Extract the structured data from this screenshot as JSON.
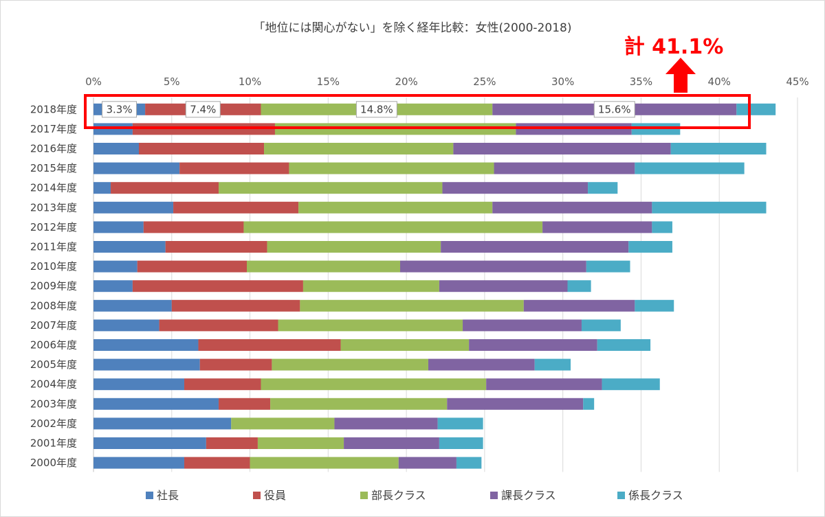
{
  "chart_data": {
    "type": "bar",
    "orientation": "horizontal",
    "stacked": true,
    "title": "「地位には関心がない」を除く経年比較：女性(2000-2018)",
    "xlabel": "",
    "ylabel": "",
    "xlim": [
      0,
      45
    ],
    "xticks": [
      "0%",
      "5%",
      "10%",
      "15%",
      "20%",
      "25%",
      "30%",
      "35%",
      "40%",
      "45%"
    ],
    "grid": true,
    "legend_position": "bottom",
    "categories": [
      "2018年度",
      "2017年度",
      "2016年度",
      "2015年度",
      "2014年度",
      "2013年度",
      "2012年度",
      "2011年度",
      "2010年度",
      "2009年度",
      "2008年度",
      "2007年度",
      "2006年度",
      "2005年度",
      "2004年度",
      "2003年度",
      "2002年度",
      "2001年度",
      "2000年度"
    ],
    "series": [
      {
        "name": "社長",
        "color": "#4f81bd",
        "values": [
          3.3,
          2.5,
          2.9,
          5.5,
          1.1,
          5.1,
          3.2,
          4.6,
          2.8,
          2.5,
          5.0,
          4.2,
          6.7,
          6.8,
          5.8,
          8.0,
          8.8,
          7.2,
          5.8
        ]
      },
      {
        "name": "役員",
        "color": "#c0504d",
        "values": [
          7.4,
          9.1,
          8.0,
          7.0,
          6.9,
          8.0,
          6.4,
          6.5,
          7.0,
          10.9,
          8.2,
          7.6,
          9.1,
          4.6,
          4.9,
          3.3,
          0.0,
          3.3,
          4.2
        ]
      },
      {
        "name": "部長クラス",
        "color": "#9bbb59",
        "values": [
          14.8,
          15.4,
          12.1,
          13.1,
          14.3,
          12.4,
          19.1,
          11.1,
          9.8,
          8.7,
          14.3,
          11.8,
          8.2,
          10.0,
          14.4,
          11.3,
          6.6,
          5.5,
          9.5
        ]
      },
      {
        "name": "課長クラス",
        "color": "#8064a2",
        "values": [
          15.6,
          7.4,
          13.9,
          9.0,
          9.3,
          10.2,
          7.0,
          12.0,
          11.9,
          8.2,
          7.1,
          7.6,
          8.2,
          6.8,
          7.4,
          8.7,
          6.6,
          6.1,
          3.7
        ]
      },
      {
        "name": "係長クラス",
        "color": "#4bacc6",
        "values": [
          2.5,
          3.1,
          6.1,
          7.0,
          1.9,
          7.3,
          1.3,
          2.8,
          2.8,
          1.5,
          2.5,
          2.5,
          3.4,
          2.3,
          3.7,
          0.7,
          2.9,
          2.8,
          1.6
        ]
      }
    ],
    "data_labels_2018": [
      "3.3%",
      "7.4%",
      "14.8%",
      "15.6%"
    ],
    "annotation": {
      "text": "計 41.1%",
      "color": "#ff0000"
    }
  }
}
